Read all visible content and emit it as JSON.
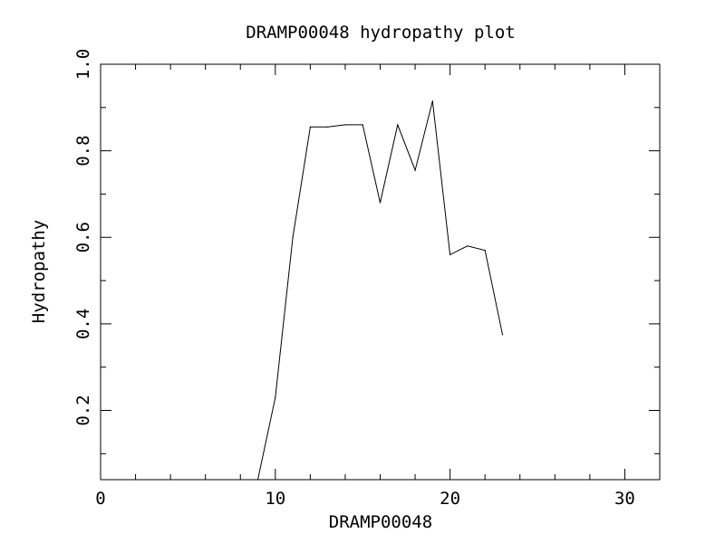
{
  "chart_data": {
    "type": "line",
    "title": "DRAMP00048 hydropathy plot",
    "xlabel": "DRAMP00048",
    "ylabel": "Hydropathy",
    "xlim": [
      0,
      32
    ],
    "ylim": [
      0.04,
      1.0
    ],
    "x_ticks": [
      0,
      10,
      20,
      30
    ],
    "x_tick_labels": [
      "0",
      "10",
      "20",
      "30"
    ],
    "y_ticks": [
      0.2,
      0.4,
      0.6,
      0.8,
      1.0
    ],
    "y_tick_labels": [
      "0.2",
      "0.4",
      "0.6",
      "0.8",
      "1.0"
    ],
    "grid": false,
    "line_color": "#000000",
    "series": [
      {
        "x": [
          9,
          10,
          11,
          12,
          13,
          14,
          15,
          16,
          17,
          18,
          19,
          20,
          21,
          22,
          23
        ],
        "y": [
          0.04,
          0.23,
          0.6,
          0.855,
          0.855,
          0.86,
          0.86,
          0.68,
          0.86,
          0.755,
          0.915,
          0.56,
          0.58,
          0.57,
          0.375
        ]
      }
    ]
  }
}
